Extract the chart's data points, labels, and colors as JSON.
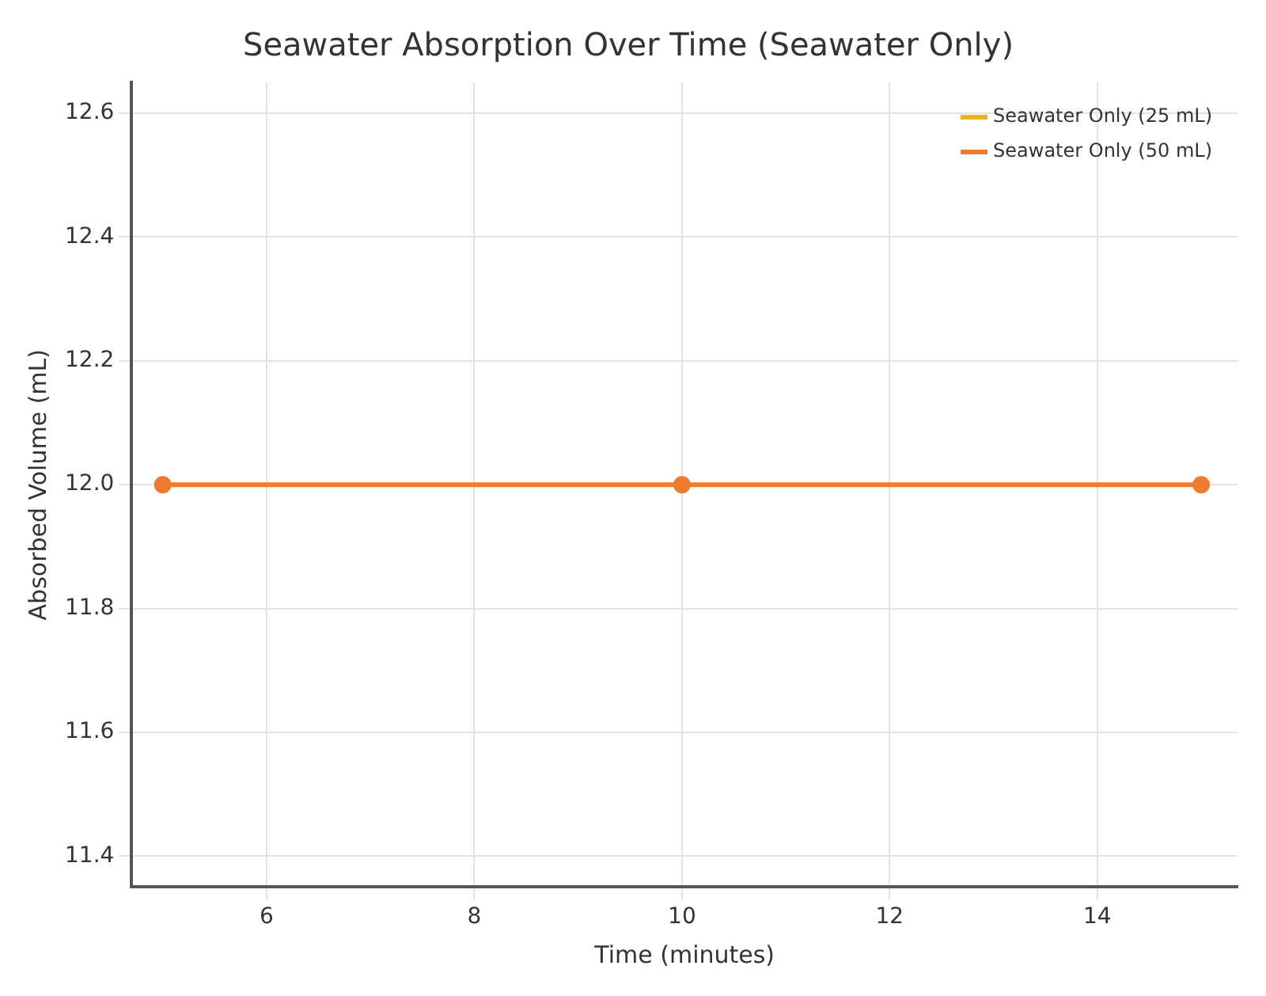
{
  "chart_data": {
    "type": "line",
    "title": "Seawater Absorption Over Time (Seawater Only)",
    "xlabel": "Time (minutes)",
    "ylabel": "Absorbed Volume (mL)",
    "x": [
      5,
      10,
      15
    ],
    "series": [
      {
        "name": "Seawater Only (25 mL)",
        "color": "#f2b01e",
        "values": [
          null,
          null,
          null
        ]
      },
      {
        "name": "Seawater Only (50 mL)",
        "color": "#ee7b30",
        "values": [
          12.0,
          12.0,
          12.0
        ]
      }
    ],
    "xlim": [
      4.7,
      15.35
    ],
    "xticks": [
      6,
      8,
      10,
      12,
      14
    ],
    "ylim": [
      11.35,
      12.65
    ],
    "yticks": [
      11.4,
      11.6,
      11.8,
      {
        "value": 12,
        "label": "12.0"
      },
      12.2,
      12.4,
      12.6
    ],
    "grid": true,
    "legend": "top right",
    "marker": "circle",
    "line_style": "solid"
  }
}
